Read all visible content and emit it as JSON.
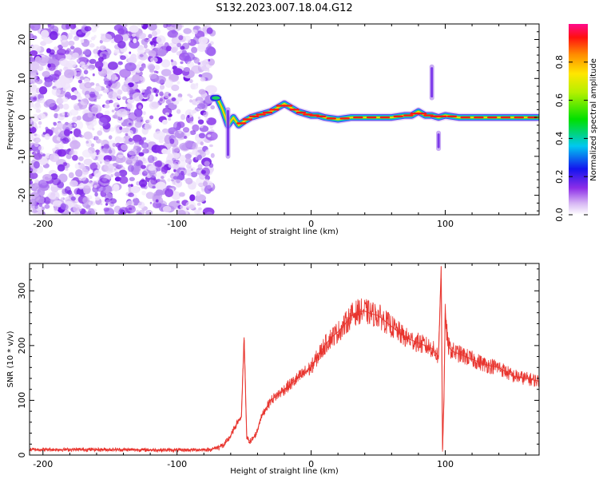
{
  "title": "S132.2023.007.18.04.G12",
  "chart_data": [
    {
      "type": "heatmap",
      "name": "spectrogram",
      "xlabel": "Height of straight line (km)",
      "ylabel": "Frequency (Hz)",
      "xlim": [
        -210,
        170
      ],
      "ylim": [
        -25,
        24
      ],
      "xticks": [
        -200,
        -100,
        0,
        100
      ],
      "yticks": [
        -20,
        -10,
        0,
        10,
        20
      ],
      "noise_region_x": [
        -210,
        -73
      ],
      "ridge": {
        "x": [
          -73,
          -70,
          -66,
          -62,
          -58,
          -54,
          -50,
          -45,
          -40,
          -35,
          -30,
          -25,
          -20,
          -15,
          -10,
          -5,
          0,
          5,
          10,
          20,
          30,
          40,
          50,
          60,
          70,
          75,
          80,
          85,
          90,
          95,
          100,
          110,
          120,
          130,
          140,
          150,
          160,
          170
        ],
        "freq": [
          5,
          5,
          2,
          -2,
          0,
          -2,
          -1,
          0,
          0.5,
          1,
          1.5,
          2.5,
          3.5,
          2.5,
          1.5,
          1,
          0.5,
          0.5,
          0,
          -0.5,
          0,
          0,
          0,
          0,
          0.5,
          0.5,
          1.5,
          0.5,
          0.5,
          0,
          0.5,
          0,
          0,
          0,
          0,
          0,
          0,
          0
        ]
      },
      "spikes": [
        {
          "x": -62,
          "freq_range": [
            -10,
            2
          ]
        },
        {
          "x": 90,
          "freq_range": [
            5,
            13
          ]
        },
        {
          "x": 95,
          "freq_range": [
            -8,
            -4
          ]
        }
      ]
    },
    {
      "type": "colorbar",
      "label": "Normalized spectral amplitude",
      "range": [
        0,
        1
      ],
      "ticks": [
        "0.0",
        "0.2",
        "0.4",
        "0.6",
        "0.8"
      ],
      "tick_values": [
        0.0,
        0.2,
        0.4,
        0.6,
        0.8
      ]
    },
    {
      "type": "line",
      "name": "snr",
      "xlabel": "Height of straight line (km)",
      "ylabel": "SNR (10 * v/v)",
      "xlim": [
        -210,
        170
      ],
      "ylim": [
        0,
        350
      ],
      "xticks": [
        -200,
        -100,
        0,
        100
      ],
      "yticks": [
        0,
        100,
        200,
        300
      ],
      "color": "#e8342e",
      "series": [
        {
          "name": "SNR",
          "x": [
            -210,
            -150,
            -100,
            -75,
            -65,
            -60,
            -55,
            -52,
            -50,
            -48,
            -45,
            -42,
            -40,
            -38,
            -35,
            -30,
            -25,
            -20,
            -15,
            -10,
            -5,
            0,
            5,
            10,
            15,
            20,
            25,
            30,
            35,
            40,
            45,
            50,
            55,
            60,
            65,
            70,
            75,
            80,
            85,
            90,
            95,
            97,
            98,
            99,
            100,
            102,
            105,
            110,
            120,
            130,
            140,
            150,
            160,
            170
          ],
          "values": [
            10,
            10,
            9,
            10,
            18,
            35,
            60,
            70,
            215,
            30,
            25,
            35,
            45,
            65,
            80,
            100,
            110,
            120,
            130,
            140,
            150,
            160,
            180,
            200,
            215,
            225,
            238,
            255,
            262,
            263,
            258,
            255,
            245,
            235,
            225,
            215,
            210,
            205,
            200,
            195,
            180,
            345,
            10,
            100,
            260,
            200,
            190,
            185,
            175,
            165,
            160,
            145,
            140,
            135
          ]
        }
      ]
    }
  ]
}
